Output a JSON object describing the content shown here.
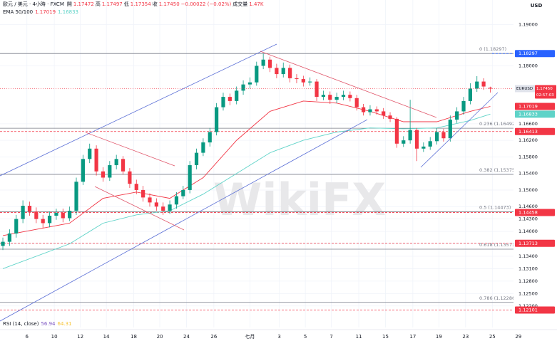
{
  "chart_data": {
    "type": "candlestick",
    "symbol_line": "歐元 / 美元 · 4小時 · FXCM",
    "ohlc_legend": [
      {
        "label": "開",
        "value": "1.17472"
      },
      {
        "label": "高",
        "value": "1.17497"
      },
      {
        "label": "低",
        "value": "1.17354"
      },
      {
        "label": "收",
        "value": "1.17450"
      }
    ],
    "change": "−0.00022 (−0.02%)",
    "volume": {
      "label": "成交量",
      "value": "1.47K"
    },
    "currency": "USD",
    "watermark": "WikiFX",
    "up_color": "#089981",
    "down_color": "#f23645",
    "open": [
      1.1365,
      1.1375,
      1.1395,
      1.143,
      1.1462,
      1.1448,
      1.143,
      1.142,
      1.1438,
      1.1445,
      1.1432,
      1.145,
      1.152,
      1.1575,
      1.16,
      1.1545,
      1.153,
      1.156,
      1.1575,
      1.1545,
      1.1515,
      1.15,
      1.1482,
      1.147,
      1.146,
      1.145,
      1.1465,
      1.1485,
      1.15,
      1.156,
      1.159,
      1.1615,
      1.164,
      1.17,
      1.1725,
      1.1715,
      1.174,
      1.1755,
      1.176,
      1.18,
      1.1815,
      1.1795,
      1.178,
      1.1795,
      1.177,
      1.1768,
      1.176,
      1.1762,
      1.1725,
      1.173,
      1.1718,
      1.1725,
      1.173,
      1.1722,
      1.17,
      1.1688,
      1.1695,
      1.169,
      1.168,
      1.1672,
      1.1612,
      1.162,
      1.1645,
      1.16,
      1.1605,
      1.1618,
      1.164,
      1.1625,
      1.167,
      1.169,
      1.1715,
      1.1745,
      1.1762,
      1.17472
    ],
    "high": [
      1.1385,
      1.1405,
      1.144,
      1.1475,
      1.1472,
      1.1458,
      1.144,
      1.1448,
      1.1455,
      1.1455,
      1.146,
      1.153,
      1.1585,
      1.1612,
      1.1608,
      1.1555,
      1.157,
      1.1585,
      1.1582,
      1.1553,
      1.1525,
      1.151,
      1.1492,
      1.148,
      1.147,
      1.1475,
      1.1495,
      1.151,
      1.157,
      1.16,
      1.1625,
      1.165,
      1.171,
      1.1735,
      1.1733,
      1.175,
      1.1765,
      1.1772,
      1.181,
      1.18297,
      1.1822,
      1.1805,
      1.1808,
      1.1803,
      1.178,
      1.1776,
      1.1772,
      1.1768,
      1.174,
      1.1738,
      1.1735,
      1.174,
      1.1738,
      1.173,
      1.1708,
      1.1705,
      1.1702,
      1.1698,
      1.1688,
      1.1676,
      1.163,
      1.1718,
      1.165,
      1.1615,
      1.1628,
      1.165,
      1.1648,
      1.168,
      1.17,
      1.1725,
      1.1758,
      1.1775,
      1.177,
      1.17497
    ],
    "low": [
      1.1355,
      1.1365,
      1.1385,
      1.142,
      1.1438,
      1.142,
      1.1408,
      1.141,
      1.1428,
      1.1422,
      1.1425,
      1.144,
      1.1512,
      1.1565,
      1.1535,
      1.152,
      1.1522,
      1.155,
      1.1537,
      1.1505,
      1.149,
      1.1472,
      1.146,
      1.145,
      1.144,
      1.1442,
      1.1455,
      1.1478,
      1.1492,
      1.155,
      1.1582,
      1.1605,
      1.1632,
      1.1692,
      1.1705,
      1.1707,
      1.173,
      1.1745,
      1.1752,
      1.1792,
      1.1785,
      1.177,
      1.1772,
      1.176,
      1.1758,
      1.175,
      1.1752,
      1.1715,
      1.1717,
      1.1708,
      1.171,
      1.1717,
      1.1714,
      1.1692,
      1.168,
      1.168,
      1.1682,
      1.1672,
      1.1664,
      1.1602,
      1.1604,
      1.1612,
      1.157,
      1.1592,
      1.1597,
      1.161,
      1.1617,
      1.1617,
      1.1662,
      1.1682,
      1.1707,
      1.1737,
      1.1742,
      1.17354
    ],
    "close": [
      1.1375,
      1.1395,
      1.143,
      1.1462,
      1.1448,
      1.143,
      1.142,
      1.1438,
      1.1445,
      1.1432,
      1.145,
      1.152,
      1.1575,
      1.16,
      1.1545,
      1.153,
      1.156,
      1.1575,
      1.1545,
      1.1515,
      1.15,
      1.1482,
      1.147,
      1.146,
      1.145,
      1.1465,
      1.1485,
      1.15,
      1.156,
      1.159,
      1.1615,
      1.164,
      1.17,
      1.1725,
      1.1715,
      1.174,
      1.1755,
      1.176,
      1.18,
      1.1815,
      1.1795,
      1.178,
      1.1795,
      1.177,
      1.1768,
      1.176,
      1.1762,
      1.1725,
      1.173,
      1.1718,
      1.1725,
      1.173,
      1.1722,
      1.17,
      1.1688,
      1.1695,
      1.169,
      1.168,
      1.1672,
      1.1612,
      1.162,
      1.1645,
      1.16,
      1.1605,
      1.1618,
      1.164,
      1.1625,
      1.167,
      1.169,
      1.1715,
      1.1745,
      1.1762,
      1.175,
      1.1745
    ],
    "indicator_label": "EMA 50/100",
    "ema": [
      {
        "color": "#f23645",
        "x": [
          0,
          10,
          15,
          20,
          25,
          30,
          35,
          40,
          45,
          50,
          55,
          60,
          65,
          70,
          73
        ],
        "values": [
          1.139,
          1.142,
          1.148,
          1.1495,
          1.148,
          1.153,
          1.162,
          1.169,
          1.1715,
          1.171,
          1.169,
          1.1665,
          1.1665,
          1.169,
          1.17019
        ]
      },
      {
        "color": "#5fd3c8",
        "x": [
          0,
          10,
          15,
          20,
          25,
          30,
          35,
          40,
          45,
          50,
          55,
          60,
          65,
          70,
          73
        ],
        "values": [
          1.131,
          1.137,
          1.142,
          1.144,
          1.145,
          1.149,
          1.154,
          1.159,
          1.162,
          1.164,
          1.165,
          1.1648,
          1.165,
          1.1668,
          1.16833
        ]
      }
    ],
    "fib_color": "#787b86",
    "fib_levels": [
      {
        "label": "0 (1.18297)",
        "value": 1.18297
      },
      {
        "label": "0.236 (1.16492)",
        "value": 1.16492
      },
      {
        "label": "0.382 (1.15375)",
        "value": 1.15375
      },
      {
        "label": "0.5 (1.14473)",
        "value": 1.14473
      },
      {
        "label": "0.618 (1.13571)",
        "value": 1.13571
      },
      {
        "label": "0.786 (1.12286)",
        "value": 1.12286
      }
    ],
    "highlight_color": "#2962ff",
    "alert_color": "#f23645",
    "alert_lines": [
      1.16413,
      1.14458,
      1.13713,
      1.12101
    ],
    "last_price": {
      "symbol": "EURUSD",
      "price": {
        "value": 1.1745,
        "label": "1.17450"
      },
      "countdown": "02:57:03"
    },
    "rsi": {
      "label": "RSI (14, close)",
      "values": [
        56.94,
        64.31
      ],
      "colors": [
        "#7e57c2",
        "#f7c331"
      ]
    },
    "ylim": [
      1.1168,
      1.1959
    ],
    "yticks": [
      {
        "value": 1.19,
        "label": "1.19000"
      },
      {
        "value": 1.18,
        "label": "1.18000"
      },
      {
        "value": 1.166,
        "label": "1.16600"
      },
      {
        "value": 1.162,
        "label": "1.16200"
      },
      {
        "value": 1.158,
        "label": "1.15800"
      },
      {
        "value": 1.154,
        "label": "1.15400"
      },
      {
        "value": 1.15,
        "label": "1.15000"
      },
      {
        "value": 1.146,
        "label": "1.14600"
      },
      {
        "value": 1.143,
        "label": "1.14300"
      },
      {
        "value": 1.14,
        "label": "1.14000"
      },
      {
        "value": 1.137,
        "label": "1.13700"
      },
      {
        "value": 1.134,
        "label": "1.13400"
      },
      {
        "value": 1.131,
        "label": "1.13100"
      },
      {
        "value": 1.128,
        "label": "1.12800"
      },
      {
        "value": 1.125,
        "label": "1.12500"
      },
      {
        "value": 1.122,
        "label": "1.12200"
      }
    ],
    "xlim": [
      -0.43,
      82.99
    ],
    "xticks": [
      {
        "value": 3.6,
        "label": "6"
      },
      {
        "value": 7.7,
        "label": "10"
      },
      {
        "value": 11.6,
        "label": "12"
      },
      {
        "value": 15.5,
        "label": "14"
      },
      {
        "value": 19.6,
        "label": "18"
      },
      {
        "value": 23.5,
        "label": "20"
      },
      {
        "value": 27.5,
        "label": "24"
      },
      {
        "value": 31.6,
        "label": "26"
      },
      {
        "value": 37,
        "label": "七月"
      },
      {
        "value": 41.4,
        "label": "3"
      },
      {
        "value": 45.3,
        "label": "5"
      },
      {
        "value": 49.2,
        "label": "7"
      },
      {
        "value": 53.3,
        "label": "11"
      },
      {
        "value": 57.3,
        "label": "15"
      },
      {
        "value": 61.4,
        "label": "17"
      },
      {
        "value": 65.3,
        "label": "19"
      },
      {
        "value": 69.3,
        "label": "23"
      },
      {
        "value": 73.3,
        "label": "25"
      },
      {
        "value": 77.2,
        "label": "29"
      }
    ]
  }
}
